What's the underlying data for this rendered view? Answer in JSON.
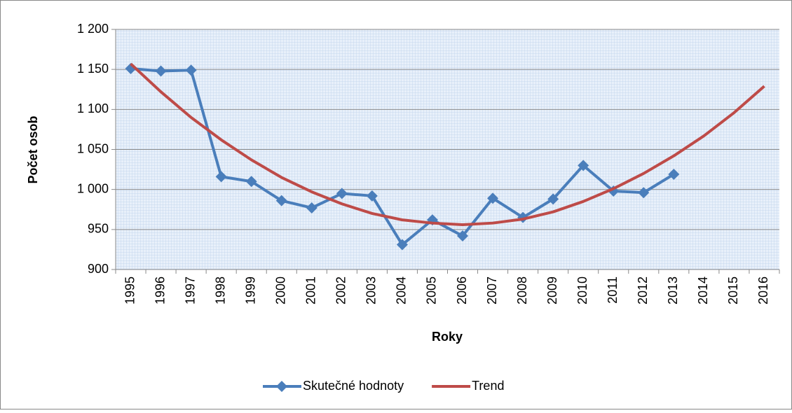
{
  "chart_data": {
    "type": "line",
    "categories": [
      "1995",
      "1996",
      "1997",
      "1998",
      "1999",
      "2000",
      "2001",
      "2002",
      "2003",
      "2004",
      "2005",
      "2006",
      "2007",
      "2008",
      "2009",
      "2010",
      "2011",
      "2012",
      "2013",
      "2014",
      "2015",
      "2016"
    ],
    "series": [
      {
        "name": "Skutečné hodnoty",
        "color": "#4a7ebb",
        "marker": "diamond",
        "values": [
          1151,
          1148,
          1149,
          1016,
          1010,
          986,
          977,
          995,
          992,
          931,
          962,
          942,
          989,
          965,
          988,
          1030,
          998,
          996,
          1019,
          null,
          null,
          null
        ]
      },
      {
        "name": "Trend",
        "color": "#be4b48",
        "values": [
          1157,
          1122,
          1090,
          1062,
          1037,
          1015,
          997,
          982,
          970,
          962,
          958,
          956,
          958,
          963,
          972,
          985,
          1001,
          1020,
          1042,
          1067,
          1096,
          1129
        ]
      }
    ],
    "ylim": [
      900,
      1200
    ],
    "yticks": [
      900,
      950,
      {
        "value": 1000,
        "label": "1 000"
      },
      {
        "value": 1050,
        "label": "1 050"
      },
      {
        "value": 1100,
        "label": "1 100"
      },
      {
        "value": 1150,
        "label": "1 150"
      },
      {
        "value": 1200,
        "label": "1 200"
      }
    ],
    "y_label": "Počet osob",
    "x_label": "Roky",
    "grid": true,
    "legend": "bottom"
  }
}
